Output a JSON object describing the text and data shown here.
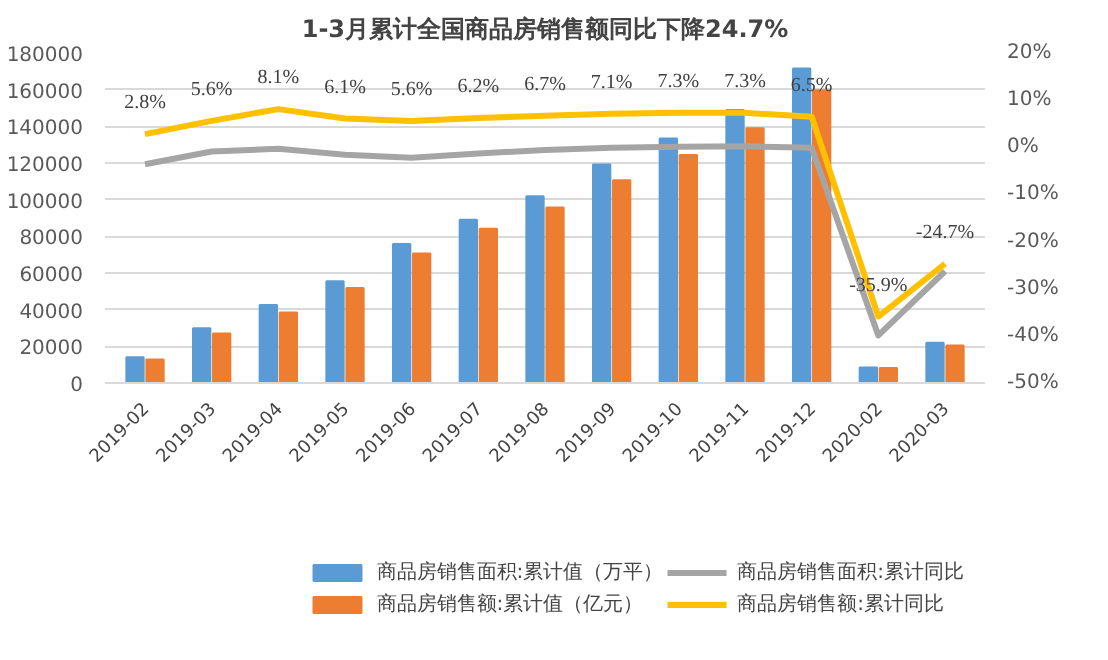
{
  "chart_data": {
    "type": "bar",
    "title": "1-3月累计全国商品房销售额同比下降24.7%",
    "categories": [
      "2019-02",
      "2019-03",
      "2019-04",
      "2019-05",
      "2019-06",
      "2019-07",
      "2019-08",
      "2019-09",
      "2019-10",
      "2019-11",
      "2019-12",
      "2020-02",
      "2020-03"
    ],
    "series": [
      {
        "name": "商品房销售面积:累计值（万平）",
        "color": "#5b9bd5",
        "values": [
          14100,
          29800,
          42500,
          55500,
          75800,
          89000,
          101800,
          119200,
          133300,
          148900,
          171600,
          8500,
          22000
        ]
      },
      {
        "name": "商品房销售额:累计值（亿元）",
        "color": "#ed7d31",
        "values": [
          12800,
          27000,
          38500,
          51800,
          70700,
          84100,
          95700,
          110600,
          124300,
          139000,
          159700,
          8200,
          20400
        ]
      },
      {
        "name": "商品房销售面积:累计同比",
        "type": "line",
        "axis": "y2",
        "color": "#a5a5a5",
        "values": [
          -3.6,
          -0.9,
          -0.3,
          -1.6,
          -2.2,
          -1.3,
          -0.6,
          -0.1,
          0.1,
          0.2,
          -0.1,
          -39.9,
          -26.3
        ]
      },
      {
        "name": "商品房销售额:累计同比",
        "type": "line",
        "axis": "y2",
        "color": "#ffc000",
        "values": [
          2.8,
          5.6,
          8.1,
          6.1,
          5.6,
          6.2,
          6.7,
          7.1,
          7.3,
          7.3,
          6.5,
          -35.9,
          -24.7
        ],
        "value_labels": [
          "2.8%",
          "5.6%",
          "8.1%",
          "6.1%",
          "5.6%",
          "6.2%",
          "6.7%",
          "7.1%",
          "7.3%",
          "7.3%",
          "6.5%",
          "-35.9%",
          "-24.7%"
        ]
      }
    ],
    "ylim": [
      0,
      180000
    ],
    "yticks": [
      0,
      20000,
      40000,
      60000,
      80000,
      100000,
      120000,
      140000,
      160000,
      180000
    ],
    "y2lim": [
      -50,
      20
    ],
    "y2ticks": [
      {
        "value": -50,
        "label": "-50%"
      },
      {
        "value": -40,
        "label": "-40%"
      },
      {
        "value": -30,
        "label": "-30%"
      },
      {
        "value": -20,
        "label": "-20%"
      },
      {
        "value": -10,
        "label": "-10%"
      },
      {
        "value": 0,
        "label": "0%"
      },
      {
        "value": 10,
        "label": "10%"
      },
      {
        "value": 20,
        "label": "20%"
      }
    ],
    "grid": "y",
    "legend": "bottom"
  }
}
